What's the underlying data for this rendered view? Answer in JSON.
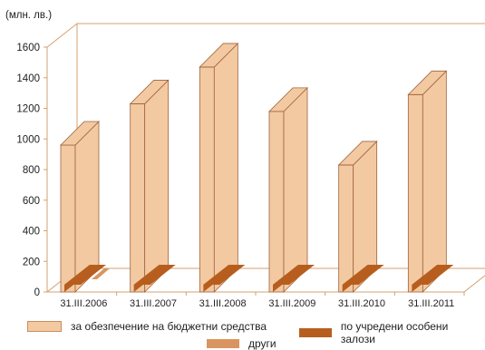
{
  "chart_data": {
    "type": "bar",
    "ylabel": "(млн. лв.)",
    "ylim": [
      0,
      1600
    ],
    "yticks": [
      0,
      200,
      400,
      600,
      800,
      1000,
      1200,
      1400,
      1600
    ],
    "categories": [
      "31.III.2006",
      "31.III.2007",
      "31.III.2008",
      "31.III.2009",
      "31.III.2010",
      "31.III.2011"
    ],
    "series": [
      {
        "name": "за обезпечение на бюджетни средства",
        "color": "#f3c9a2",
        "values": [
          960,
          1230,
          1470,
          1180,
          830,
          1290
        ]
      },
      {
        "name": "по учредени особени залози",
        "color": "#b75e1f",
        "values": [
          10,
          10,
          10,
          10,
          10,
          10
        ]
      },
      {
        "name": "други",
        "color": "#d9955f",
        "values": [
          70,
          0,
          0,
          0,
          0,
          0
        ]
      }
    ],
    "legend_position": "bottom",
    "grid": false
  }
}
